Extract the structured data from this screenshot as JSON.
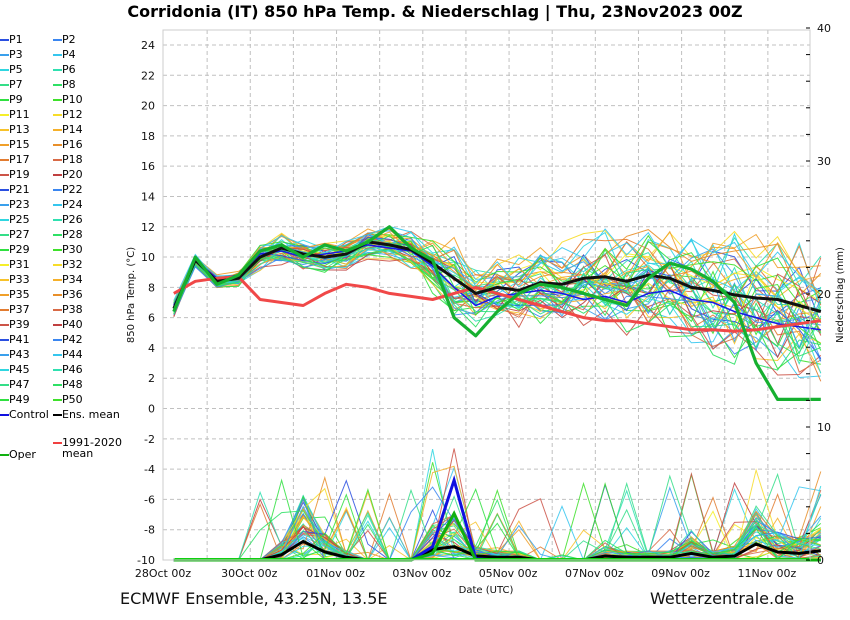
{
  "header": {
    "title": "Corridonia  (IT)  850 hPa Temp. & Niederschlag | Thu, 23Nov2023 00Z"
  },
  "footer": {
    "left": "ECMWF Ensemble, 43.25N, 13.5E",
    "right": "Wetterzentrale.de"
  },
  "legend": {
    "members": [
      {
        "label": "P1",
        "color": "#2a4fe0"
      },
      {
        "label": "P2",
        "color": "#3a86f0"
      },
      {
        "label": "P3",
        "color": "#3aa0ec"
      },
      {
        "label": "P4",
        "color": "#35c6ee"
      },
      {
        "label": "P5",
        "color": "#2fd6e0"
      },
      {
        "label": "P6",
        "color": "#2fe0b0"
      },
      {
        "label": "P7",
        "color": "#33de88"
      },
      {
        "label": "P8",
        "color": "#2ee065"
      },
      {
        "label": "P9",
        "color": "#2fe040"
      },
      {
        "label": "P10",
        "color": "#3ee02a"
      },
      {
        "label": "P11",
        "color": "#f5ef2a"
      },
      {
        "label": "P12",
        "color": "#f7dc2a"
      },
      {
        "label": "P13",
        "color": "#f7c22a"
      },
      {
        "label": "P14",
        "color": "#f5b02a"
      },
      {
        "label": "P15",
        "color": "#f0a02a"
      },
      {
        "label": "P16",
        "color": "#e88f2a"
      },
      {
        "label": "P17",
        "color": "#e27c30"
      },
      {
        "label": "P18",
        "color": "#d86a45"
      },
      {
        "label": "P19",
        "color": "#cc5448"
      },
      {
        "label": "P20",
        "color": "#c04040"
      },
      {
        "label": "P21",
        "color": "#2a4fe0"
      },
      {
        "label": "P22",
        "color": "#3a86f0"
      },
      {
        "label": "P23",
        "color": "#3aa0ec"
      },
      {
        "label": "P24",
        "color": "#35c6ee"
      },
      {
        "label": "P25",
        "color": "#2fd6e0"
      },
      {
        "label": "P26",
        "color": "#2fe0b0"
      },
      {
        "label": "P27",
        "color": "#33de88"
      },
      {
        "label": "P28",
        "color": "#2ee065"
      },
      {
        "label": "P29",
        "color": "#2fe040"
      },
      {
        "label": "P30",
        "color": "#3ee02a"
      },
      {
        "label": "P31",
        "color": "#f5ef2a"
      },
      {
        "label": "P32",
        "color": "#f7dc2a"
      },
      {
        "label": "P33",
        "color": "#f7c22a"
      },
      {
        "label": "P34",
        "color": "#f5b02a"
      },
      {
        "label": "P35",
        "color": "#f0a02a"
      },
      {
        "label": "P36",
        "color": "#e88f2a"
      },
      {
        "label": "P37",
        "color": "#e27c30"
      },
      {
        "label": "P38",
        "color": "#d86a45"
      },
      {
        "label": "P39",
        "color": "#cc5448"
      },
      {
        "label": "P40",
        "color": "#c04040"
      },
      {
        "label": "P41",
        "color": "#2a4fe0"
      },
      {
        "label": "P42",
        "color": "#3a86f0"
      },
      {
        "label": "P43",
        "color": "#3aa0ec"
      },
      {
        "label": "P44",
        "color": "#35c6ee"
      },
      {
        "label": "P45",
        "color": "#2fd6e0"
      },
      {
        "label": "P46",
        "color": "#2fe0b0"
      },
      {
        "label": "P47",
        "color": "#33de88"
      },
      {
        "label": "P48",
        "color": "#2ee065"
      },
      {
        "label": "P49",
        "color": "#2fe040"
      },
      {
        "label": "P50",
        "color": "#3ee02a"
      }
    ],
    "control": {
      "label": "Control",
      "color": "#1010e0"
    },
    "ens_mean": {
      "label": "Ens. mean",
      "color": "#000000"
    },
    "clim_mean": {
      "label": "1991-2020\nmean",
      "line1": "1991-2020",
      "line2": "mean",
      "color": "#f04040"
    },
    "oper": {
      "label": "Oper",
      "color": "#10b010"
    }
  },
  "chart_data": {
    "type": "line",
    "title": "Corridonia  (IT)  850 hPa Temp. & Niederschlag | Thu, 23Nov2023 00Z",
    "xlabel": "Date (UTC)",
    "ylabel": "850 hPa Temp. (°C)",
    "y2label": "Niederschlag (mm)",
    "x_tick_labels": [
      "28Oct 00z",
      "30Oct 00z",
      "01Nov 00z",
      "03Nov 00z",
      "05Nov 00z",
      "07Nov 00z",
      "09Nov 00z",
      "11Nov 00z"
    ],
    "x_range_days": [
      0,
      15
    ],
    "x_tick_days": [
      0,
      2,
      4,
      6,
      8,
      10,
      12,
      14
    ],
    "ylim": [
      -10,
      25
    ],
    "y_ticks": [
      -10,
      -8,
      -6,
      -4,
      -2,
      0,
      2,
      4,
      6,
      8,
      10,
      12,
      14,
      16,
      18,
      20,
      22,
      24
    ],
    "y2lim": [
      0,
      40
    ],
    "y2_ticks": [
      0,
      10,
      20,
      30,
      40
    ],
    "grid": true,
    "step_hours": 12,
    "start_day": 0.25,
    "series": [
      {
        "name": "Ens. mean",
        "values": [
          6.6,
          9.8,
          8.4,
          8.6,
          10.0,
          10.6,
          10.2,
          10.0,
          10.2,
          11.0,
          10.8,
          10.5,
          9.6,
          8.6,
          7.6,
          8.0,
          7.8,
          8.3,
          8.2,
          8.6,
          8.7,
          8.4,
          8.8,
          8.6,
          8.0,
          7.8,
          7.5,
          7.3,
          7.2,
          6.8,
          6.4
        ]
      },
      {
        "name": "1991-2020 mean",
        "values": [
          7.6,
          8.4,
          8.6,
          8.7,
          7.2,
          7.0,
          6.8,
          7.6,
          8.2,
          8.0,
          7.6,
          7.4,
          7.2,
          7.6,
          8.0,
          7.6,
          7.2,
          6.8,
          6.4,
          6.0,
          5.8,
          5.8,
          5.6,
          5.4,
          5.2,
          5.2,
          5.1,
          5.2,
          5.4,
          5.6,
          5.8
        ]
      },
      {
        "name": "Oper",
        "values": [
          6.4,
          10.0,
          8.2,
          8.8,
          10.4,
          10.8,
          10.0,
          10.8,
          10.4,
          11.0,
          12.0,
          10.6,
          9.8,
          6.0,
          4.8,
          6.4,
          7.6,
          8.2,
          8.0,
          7.6,
          7.2,
          6.8,
          8.6,
          9.6,
          9.2,
          8.4,
          7.0,
          3.0,
          0.6,
          0.6,
          0.6
        ]
      },
      {
        "name": "Control",
        "values": [
          6.8,
          9.8,
          8.6,
          8.8,
          10.2,
          10.4,
          10.0,
          10.2,
          10.4,
          10.8,
          10.6,
          10.4,
          9.4,
          8.0,
          6.8,
          7.4,
          7.6,
          7.8,
          7.6,
          7.2,
          7.4,
          7.0,
          7.6,
          7.8,
          7.2,
          7.0,
          6.4,
          6.0,
          5.6,
          5.4,
          5.2
        ]
      }
    ],
    "precip_series": [
      {
        "name": "Ens. mean",
        "values": [
          0,
          0,
          0,
          0,
          0,
          0.4,
          1.4,
          0.6,
          0.2,
          0,
          0,
          0,
          0.8,
          1.0,
          0.3,
          0.2,
          0.2,
          0,
          0,
          0,
          0.3,
          0.2,
          0.2,
          0.2,
          0.5,
          0.2,
          0.3,
          1.2,
          0.6,
          0.5,
          0.7
        ]
      },
      {
        "name": "Control",
        "values": [
          0,
          0,
          0,
          0,
          0,
          0,
          0,
          0,
          0,
          0,
          0,
          0,
          1.0,
          6.0,
          0.1,
          0,
          0,
          0,
          0,
          0,
          0,
          0,
          0,
          0,
          0,
          0,
          0,
          0,
          0,
          0,
          0
        ]
      },
      {
        "name": "Oper",
        "values": [
          0,
          0,
          0,
          0,
          0,
          0,
          0,
          0,
          0,
          0,
          0,
          0,
          0.5,
          3.5,
          0,
          0,
          0,
          0,
          0,
          0,
          0,
          0,
          0,
          0,
          0,
          0,
          0,
          0,
          0,
          0,
          0
        ]
      }
    ],
    "member_spread": {
      "description": "50 ensemble member temperature and precipitation traces fanning around the ensemble mean",
      "temp_spread_by_step": [
        0.5,
        0.4,
        0.4,
        0.5,
        0.8,
        0.9,
        0.9,
        0.9,
        1.0,
        1.0,
        1.1,
        1.3,
        1.6,
        2.2,
        2.0,
        1.9,
        2.0,
        2.2,
        2.3,
        2.5,
        2.7,
        2.9,
        3.0,
        3.2,
        3.4,
        3.6,
        3.8,
        4.0,
        4.2,
        4.2,
        4.2
      ]
    }
  }
}
